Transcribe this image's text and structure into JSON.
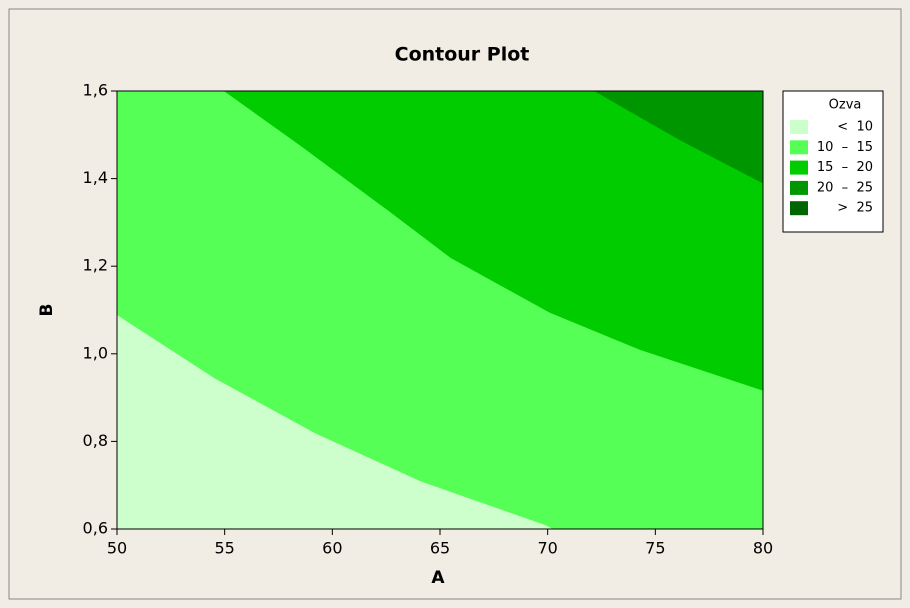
{
  "chart_data": {
    "type": "contour",
    "title": "Contour Plot",
    "x_label": "A",
    "y_label": "B",
    "legend_title": "Ozva",
    "legend": [
      {
        "label": "<  10",
        "color": "#ccffcc"
      },
      {
        "label": "10  –  15",
        "color": "#55ff55"
      },
      {
        "label": "15  –  20",
        "color": "#00cc00"
      },
      {
        "label": "20  –  25",
        "color": "#009600"
      },
      {
        "label": ">  25",
        "color": "#006400"
      }
    ],
    "contours": [
      {
        "x": [
          50,
          54.55,
          59.2,
          64.1,
          69.9,
          70.3
        ],
        "y": [
          1.09,
          0.945,
          0.82,
          0.71,
          0.61,
          0.6
        ]
      },
      {
        "x": [
          55,
          58.5,
          62.6,
          65.5,
          70.1,
          74.3,
          80
        ],
        "y": [
          1.6,
          1.477,
          1.328,
          1.22,
          1.095,
          1.01,
          0.917
        ]
      },
      {
        "x": [
          72.2,
          76.1,
          80
        ],
        "y": [
          1.6,
          1.49,
          1.39
        ]
      }
    ],
    "xlim": [
      50,
      80
    ],
    "ylim": [
      0.6,
      1.6
    ],
    "xticks": [
      50,
      55,
      60,
      65,
      70,
      75,
      80
    ],
    "yticks": [
      {
        "value": 0.6,
        "label": "0,6"
      },
      {
        "value": 0.8,
        "label": "0,8"
      },
      {
        "value": 1.0,
        "label": "1,0"
      },
      {
        "value": 1.2,
        "label": "1,2"
      },
      {
        "value": 1.4,
        "label": "1,4"
      },
      {
        "value": 1.6,
        "label": "1,6"
      }
    ]
  }
}
